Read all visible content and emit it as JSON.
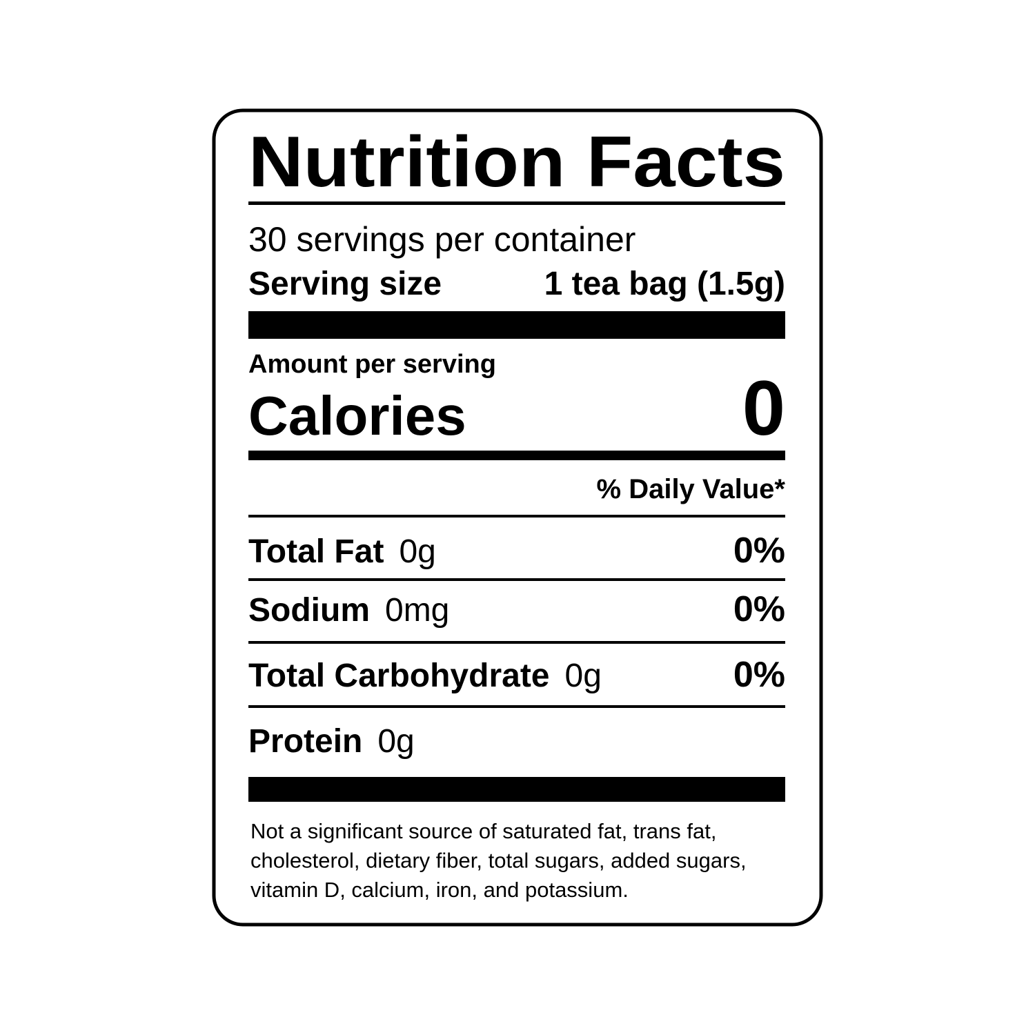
{
  "title": "Nutrition Facts",
  "servings": "30 servings per container",
  "serving_size": {
    "label": "Serving size",
    "value": "1 tea bag (1.5g)"
  },
  "amount_per_serving": "Amount per serving",
  "calories": {
    "label": "Calories",
    "value": "0"
  },
  "daily_value_header": "% Daily Value*",
  "nutrients": [
    {
      "name": "Total Fat",
      "amount": "0g",
      "dv": "0%"
    },
    {
      "name": "Sodium",
      "amount": "0mg",
      "dv": "0%"
    },
    {
      "name": "Total Carbohydrate",
      "amount": "0g",
      "dv": "0%"
    },
    {
      "name": "Protein",
      "amount": "0g"
    }
  ],
  "footnote": [
    "Not a significant source of saturated fat, trans fat,",
    "cholesterol, dietary fiber, total sugars, added sugars,",
    "vitamin D, calcium, iron, and potassium."
  ]
}
